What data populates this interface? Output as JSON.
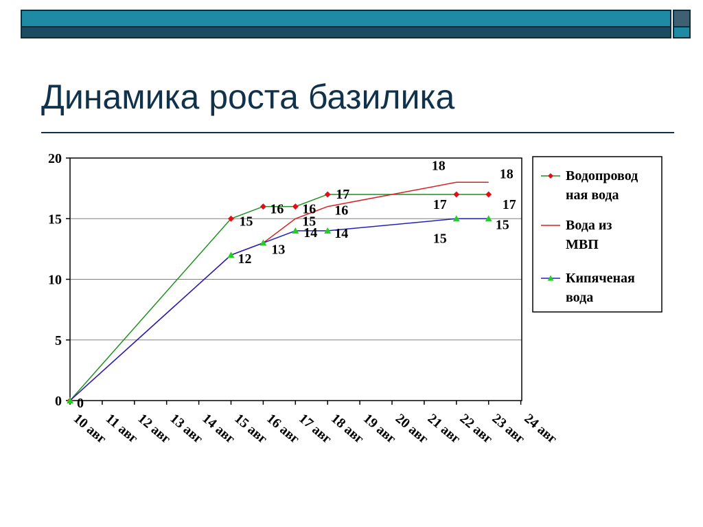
{
  "slide": {
    "title": "Динамика роста базилика"
  },
  "colors": {
    "accent": "#1f8aa3",
    "dark": "#10324a",
    "series_green": "#1f8f1f",
    "series_red": "#d82020",
    "series_blue": "#2020c0"
  },
  "chart_data": {
    "type": "line",
    "title": "",
    "xlabel": "",
    "ylabel": "",
    "ylim": [
      0,
      20
    ],
    "yticks": [
      0,
      5,
      10,
      15,
      20
    ],
    "grid": "horizontal",
    "legend_position": "right",
    "categories": [
      "10 авг",
      "11 авг",
      "12 авг",
      "13 авг",
      "14 авг",
      "15 авг",
      "16 авг",
      "17 авг",
      "18 авг",
      "19 авг",
      "20 авг",
      "21 авг",
      "22 авг",
      "23 авг",
      "24 авг"
    ],
    "series": [
      {
        "name": "Водопровод ная вода",
        "legend_lines": [
          "Водопровод",
          "ная вода"
        ],
        "color": "#1f8f1f",
        "marker": "diamond",
        "marker_color": "#e0101a",
        "points": [
          {
            "x": "10 авг",
            "y": 0,
            "label": ""
          },
          {
            "x": "15 авг",
            "y": 15,
            "label": "15"
          },
          {
            "x": "16 авг",
            "y": 16,
            "label": "16"
          },
          {
            "x": "17 авг",
            "y": 16,
            "label": "16"
          },
          {
            "x": "18 авг",
            "y": 17,
            "label": "17"
          },
          {
            "x": "22 авг",
            "y": 17,
            "label": "17"
          },
          {
            "x": "23 авг",
            "y": 17,
            "label": "17"
          }
        ]
      },
      {
        "name": "Вода из МВП",
        "legend_lines": [
          "Вода из",
          "МВП"
        ],
        "color": "#d82020",
        "marker": "none",
        "points": [
          {
            "x": "10 авг",
            "y": 0,
            "label": ""
          },
          {
            "x": "15 авг",
            "y": 12,
            "label": ""
          },
          {
            "x": "16 авг",
            "y": 13,
            "label": ""
          },
          {
            "x": "17 авг",
            "y": 15,
            "label": "15"
          },
          {
            "x": "18 авг",
            "y": 16,
            "label": "16"
          },
          {
            "x": "22 авг",
            "y": 18,
            "label": "18"
          },
          {
            "x": "23 авг",
            "y": 18,
            "label": "18"
          }
        ]
      },
      {
        "name": "Кипяченая вода",
        "legend_lines": [
          "Кипяченая",
          "вода"
        ],
        "color": "#2020c0",
        "marker": "triangle",
        "marker_color": "#20d020",
        "points": [
          {
            "x": "10 авг",
            "y": 0,
            "label": "0"
          },
          {
            "x": "15 авг",
            "y": 12,
            "label": "12"
          },
          {
            "x": "16 авг",
            "y": 13,
            "label": "13"
          },
          {
            "x": "17 авг",
            "y": 14,
            "label": "14"
          },
          {
            "x": "18 авг",
            "y": 14,
            "label": "14"
          },
          {
            "x": "22 авг",
            "y": 15,
            "label": "15"
          },
          {
            "x": "23 авг",
            "y": 15,
            "label": "15"
          }
        ]
      }
    ]
  }
}
